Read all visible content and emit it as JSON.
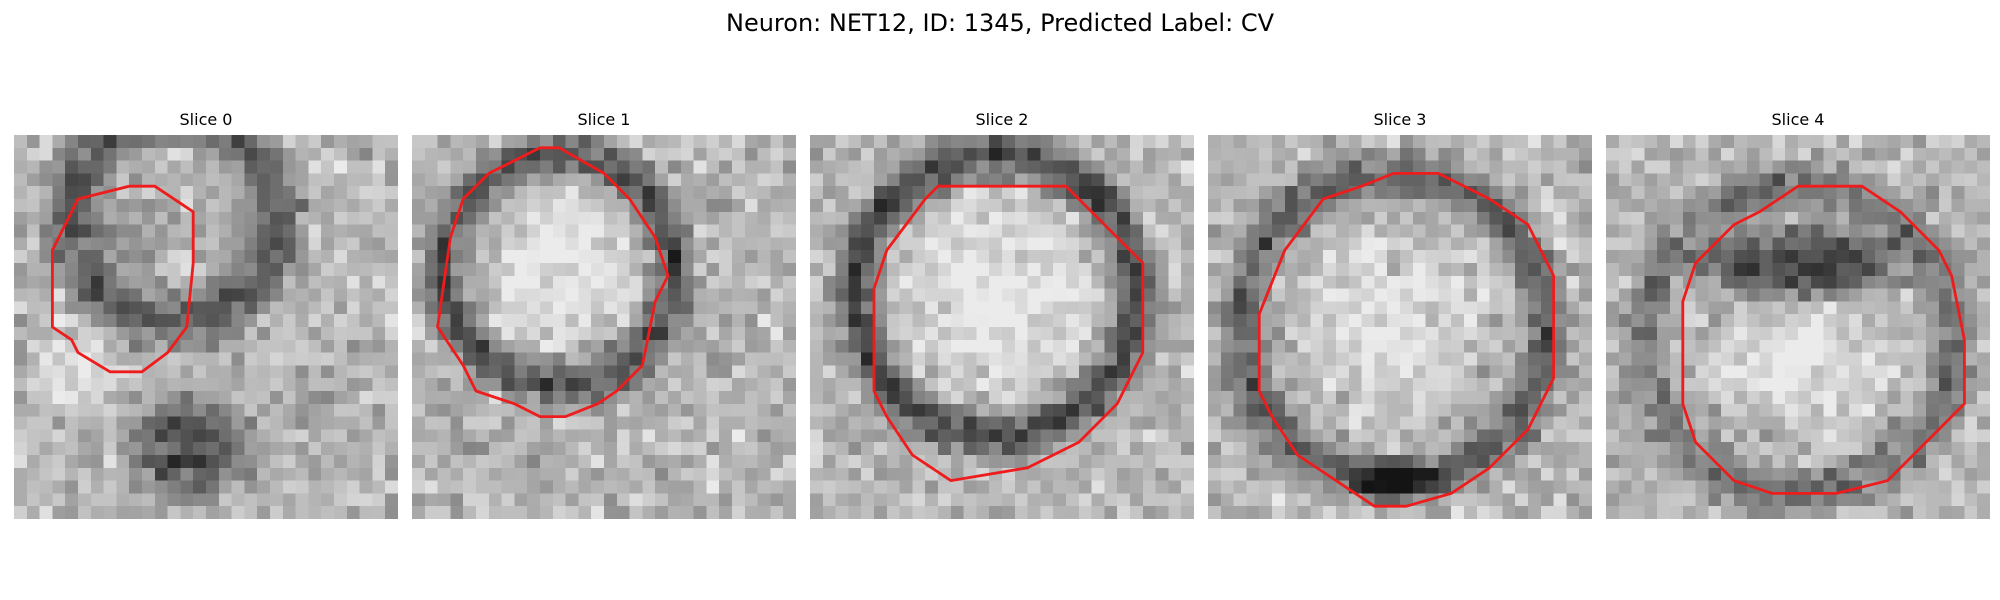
{
  "figure": {
    "title": "Neuron: NET12, ID: 1345, Predicted Label: CV"
  },
  "contour_color": "#ee1c1c",
  "panels": [
    {
      "title": "Slice 0",
      "blobs": [
        {
          "cx": 12.5,
          "cy": 6.5,
          "rx": 8,
          "ry": 8,
          "ring": true,
          "ringWidth": 3,
          "ringStrength": 0.45
        },
        {
          "cx": 10,
          "cy": 8,
          "rx": 4,
          "ry": 4,
          "ring": false,
          "strength": 0.15
        },
        {
          "cx": 14,
          "cy": 24.5,
          "rx": 6,
          "ry": 5,
          "ring": false,
          "strength": 0.5
        },
        {
          "cx": 5,
          "cy": 18,
          "rx": 4,
          "ry": 4,
          "ring": false,
          "strength": -0.2
        }
      ],
      "contour": [
        [
          9,
          4
        ],
        [
          11,
          4
        ],
        [
          14,
          6
        ],
        [
          14,
          10
        ],
        [
          13.5,
          15
        ],
        [
          12,
          17
        ],
        [
          10,
          18.5
        ],
        [
          7.5,
          18.5
        ],
        [
          5,
          17
        ],
        [
          4.5,
          16
        ],
        [
          3,
          15
        ],
        [
          3,
          9
        ],
        [
          4,
          7
        ],
        [
          5,
          5
        ]
      ]
    },
    {
      "title": "Slice 1",
      "blobs": [
        {
          "cx": 11.5,
          "cy": 10.5,
          "rx": 9,
          "ry": 9,
          "ring": true,
          "ringWidth": 2.5,
          "ringStrength": 0.5
        },
        {
          "cx": 11.5,
          "cy": 10.5,
          "rx": 7,
          "ry": 7,
          "ring": false,
          "strength": -0.25
        }
      ],
      "contour": [
        [
          10,
          1
        ],
        [
          11.5,
          1
        ],
        [
          15,
          3
        ],
        [
          17,
          5
        ],
        [
          19,
          8
        ],
        [
          20,
          11
        ],
        [
          19,
          13
        ],
        [
          18,
          18
        ],
        [
          16,
          20
        ],
        [
          14.5,
          21
        ],
        [
          12,
          22
        ],
        [
          10,
          22
        ],
        [
          8,
          21
        ],
        [
          5,
          20
        ],
        [
          4,
          18
        ],
        [
          2,
          15
        ],
        [
          3,
          8
        ],
        [
          4,
          5
        ],
        [
          6,
          3
        ]
      ]
    },
    {
      "title": "Slice 2",
      "blobs": [
        {
          "cx": 14.5,
          "cy": 12.5,
          "rx": 11,
          "ry": 11,
          "ring": true,
          "ringWidth": 2.5,
          "ringStrength": 0.55
        },
        {
          "cx": 14.5,
          "cy": 12.5,
          "rx": 9,
          "ry": 9,
          "ring": false,
          "strength": -0.25
        }
      ],
      "contour": [
        [
          10,
          4
        ],
        [
          20,
          4
        ],
        [
          24,
          8
        ],
        [
          26,
          10
        ],
        [
          26,
          17
        ],
        [
          24,
          21
        ],
        [
          21,
          24
        ],
        [
          17,
          26
        ],
        [
          11,
          27
        ],
        [
          8,
          25
        ],
        [
          6,
          22
        ],
        [
          5,
          20
        ],
        [
          5,
          12
        ],
        [
          6,
          9
        ],
        [
          9,
          5
        ]
      ]
    },
    {
      "title": "Slice 3",
      "blobs": [
        {
          "cx": 14.5,
          "cy": 15,
          "rx": 12,
          "ry": 12,
          "ring": true,
          "ringWidth": 2.5,
          "ringStrength": 0.45
        },
        {
          "cx": 14.5,
          "cy": 27,
          "rx": 4,
          "ry": 2,
          "ring": false,
          "strength": 0.5
        },
        {
          "cx": 14.5,
          "cy": 15,
          "rx": 9,
          "ry": 9,
          "ring": false,
          "strength": -0.2
        }
      ],
      "contour": [
        [
          14.5,
          3
        ],
        [
          18,
          3
        ],
        [
          22,
          5
        ],
        [
          25,
          7
        ],
        [
          27,
          11
        ],
        [
          27,
          19
        ],
        [
          25,
          23
        ],
        [
          22,
          26
        ],
        [
          19,
          28
        ],
        [
          15.5,
          29
        ],
        [
          13,
          29
        ],
        [
          10,
          27
        ],
        [
          7,
          25
        ],
        [
          5,
          22
        ],
        [
          4,
          20
        ],
        [
          4,
          14
        ],
        [
          6,
          9
        ],
        [
          9,
          5
        ],
        [
          12,
          4
        ]
      ]
    },
    {
      "title": "Slice 4",
      "blobs": [
        {
          "cx": 15,
          "cy": 16,
          "rx": 12,
          "ry": 12,
          "ring": true,
          "ringWidth": 2.5,
          "ringStrength": 0.35
        },
        {
          "cx": 15,
          "cy": 10,
          "rx": 10,
          "ry": 3.5,
          "ring": false,
          "strength": 0.55
        },
        {
          "cx": 15,
          "cy": 18,
          "rx": 8,
          "ry": 6,
          "ring": false,
          "strength": -0.25
        }
      ],
      "contour": [
        [
          15,
          4
        ],
        [
          20,
          4
        ],
        [
          23,
          6
        ],
        [
          26,
          9
        ],
        [
          27,
          11
        ],
        [
          28,
          16
        ],
        [
          28,
          21
        ],
        [
          25,
          24
        ],
        [
          22,
          27
        ],
        [
          18,
          28
        ],
        [
          13,
          28
        ],
        [
          10,
          27
        ],
        [
          7,
          24
        ],
        [
          6,
          21
        ],
        [
          6,
          13
        ],
        [
          7,
          10
        ],
        [
          10,
          7
        ],
        [
          12,
          6
        ]
      ]
    }
  ]
}
